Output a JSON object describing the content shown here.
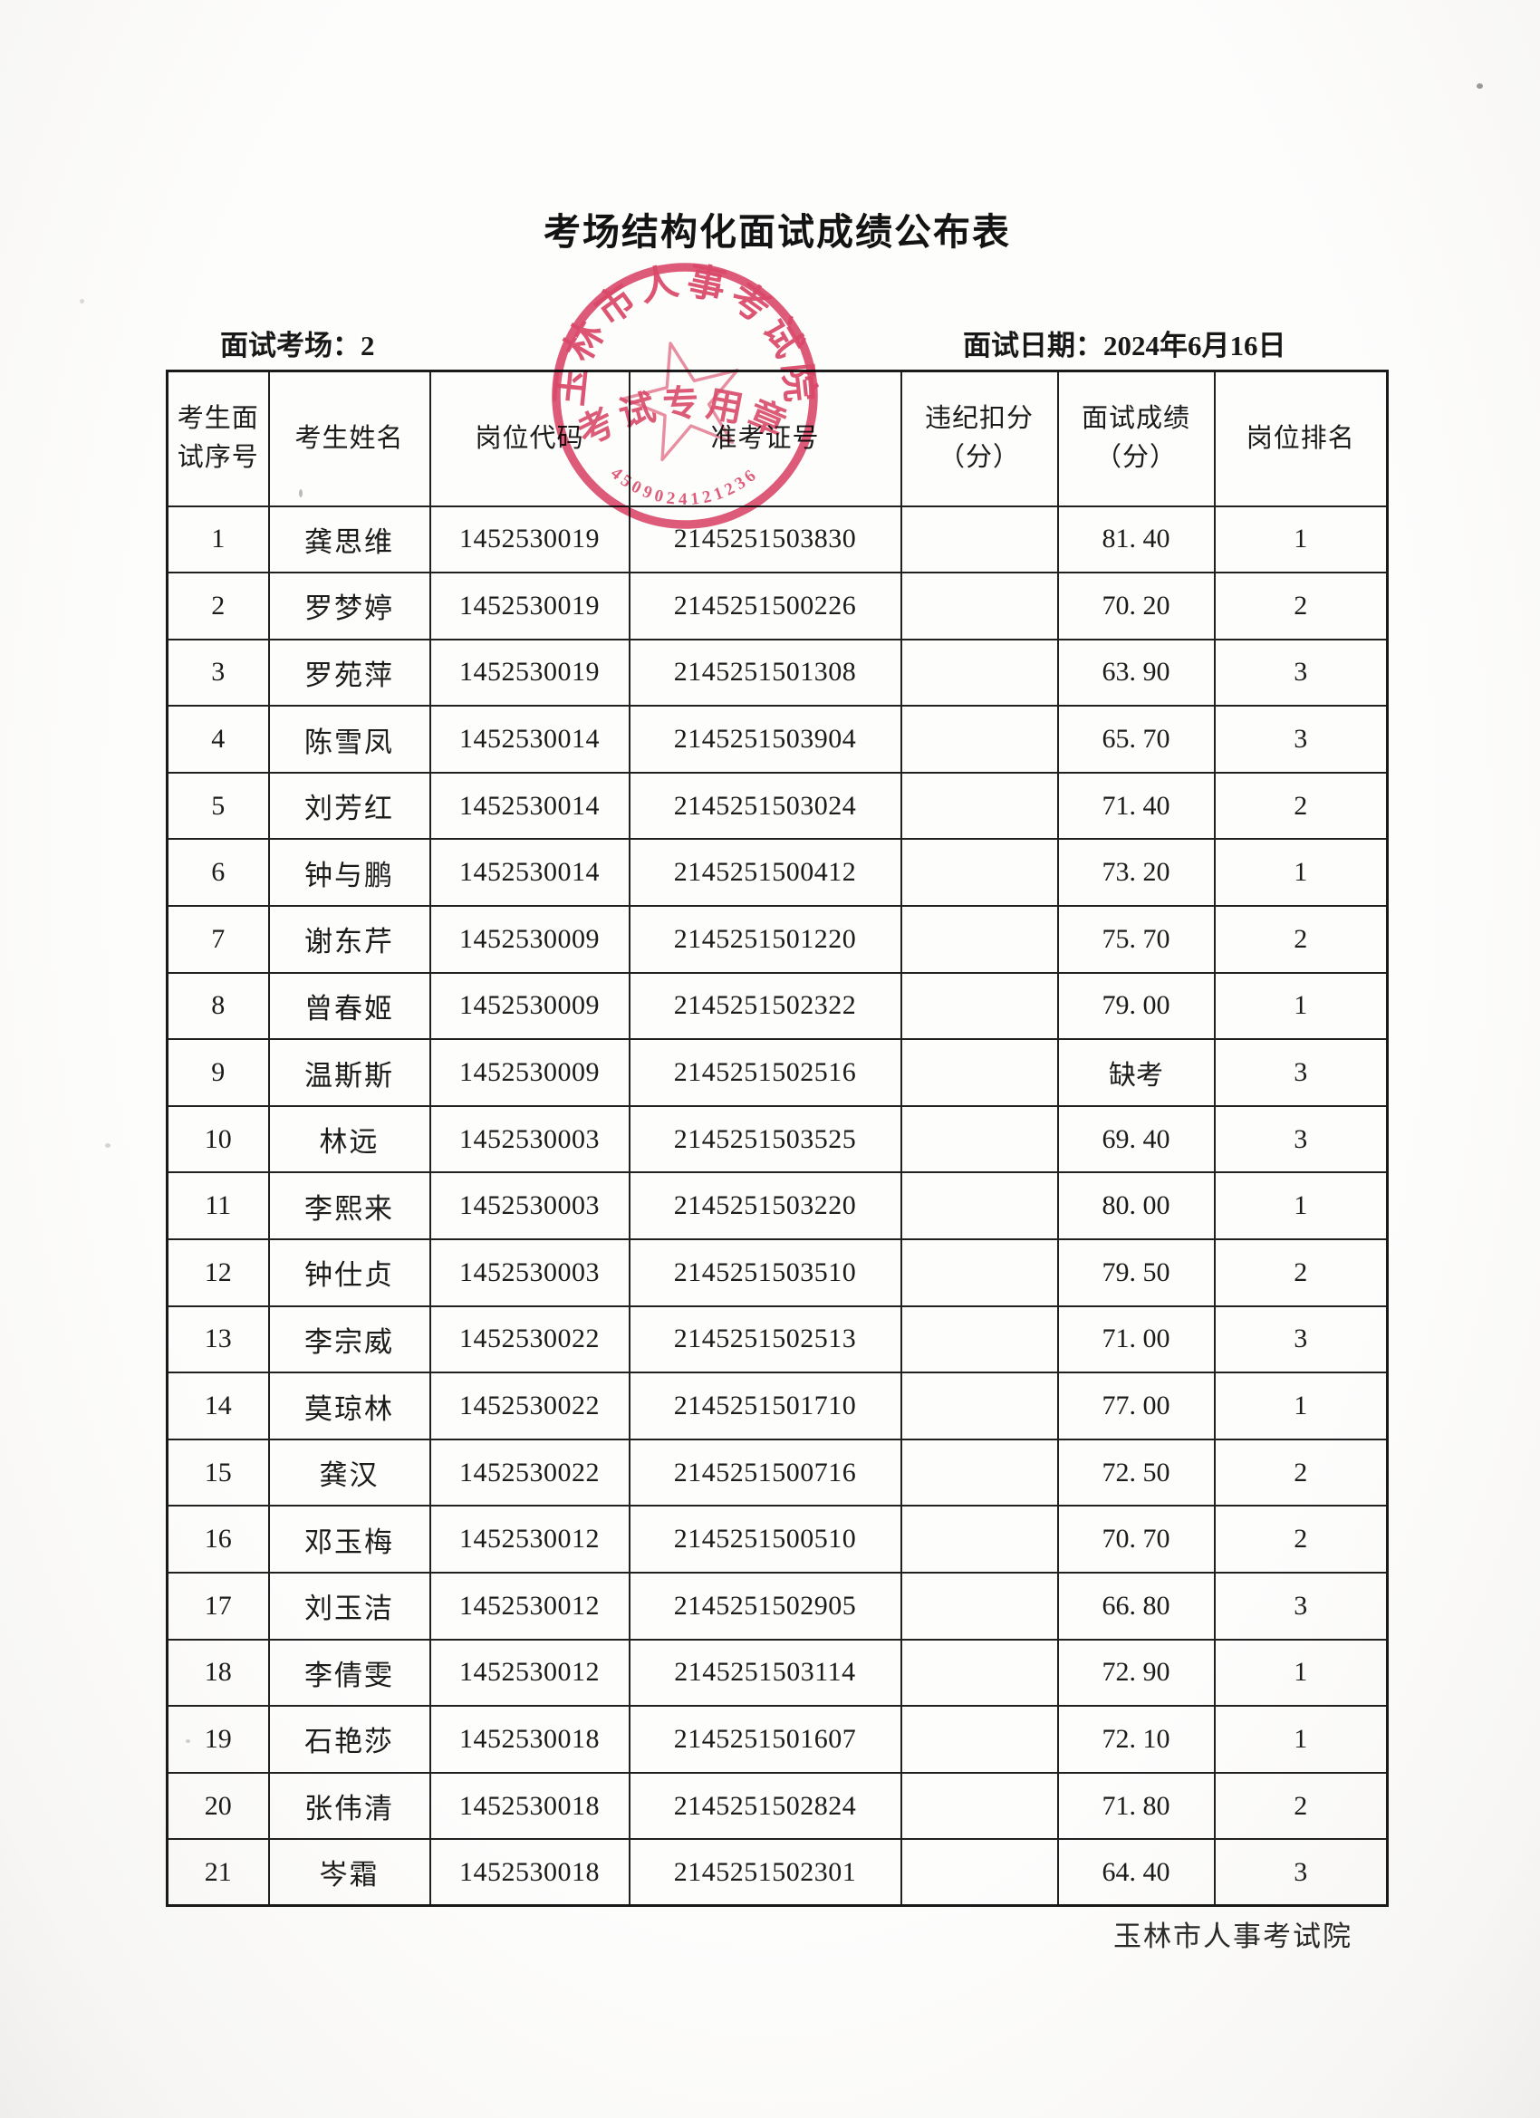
{
  "page": {
    "title": "考场结构化面试成绩公布表",
    "meta": {
      "venue_label": "面试考场：",
      "venue_value": "2",
      "date_label": "面试日期：",
      "date_value": "2024年6月16日"
    },
    "footer": "玉林市人事考试院"
  },
  "stamp": {
    "ring_text": "玉林市人事考试院",
    "band_text": "考试专用章",
    "serial": "4509024121236",
    "color": "#d83b5e"
  },
  "table": {
    "headers": [
      "考生面\n试序号",
      "考生姓名",
      "岗位代码",
      "准考证号",
      "违纪扣分\n（分）",
      "面试成绩\n（分）",
      "岗位排名"
    ],
    "rows": [
      [
        "1",
        "龚思维",
        "1452530019",
        "2145251503830",
        "",
        "81. 40",
        "1"
      ],
      [
        "2",
        "罗梦婷",
        "1452530019",
        "2145251500226",
        "",
        "70. 20",
        "2"
      ],
      [
        "3",
        "罗苑萍",
        "1452530019",
        "2145251501308",
        "",
        "63. 90",
        "3"
      ],
      [
        "4",
        "陈雪凤",
        "1452530014",
        "2145251503904",
        "",
        "65. 70",
        "3"
      ],
      [
        "5",
        "刘芳红",
        "1452530014",
        "2145251503024",
        "",
        "71. 40",
        "2"
      ],
      [
        "6",
        "钟与鹏",
        "1452530014",
        "2145251500412",
        "",
        "73. 20",
        "1"
      ],
      [
        "7",
        "谢东芹",
        "1452530009",
        "2145251501220",
        "",
        "75. 70",
        "2"
      ],
      [
        "8",
        "曾春姬",
        "1452530009",
        "2145251502322",
        "",
        "79. 00",
        "1"
      ],
      [
        "9",
        "温斯斯",
        "1452530009",
        "2145251502516",
        "",
        "缺考",
        "3"
      ],
      [
        "10",
        "林远",
        "1452530003",
        "2145251503525",
        "",
        "69. 40",
        "3"
      ],
      [
        "11",
        "李熙来",
        "1452530003",
        "2145251503220",
        "",
        "80. 00",
        "1"
      ],
      [
        "12",
        "钟仕贞",
        "1452530003",
        "2145251503510",
        "",
        "79. 50",
        "2"
      ],
      [
        "13",
        "李宗威",
        "1452530022",
        "2145251502513",
        "",
        "71. 00",
        "3"
      ],
      [
        "14",
        "莫琼林",
        "1452530022",
        "2145251501710",
        "",
        "77. 00",
        "1"
      ],
      [
        "15",
        "龚汉",
        "1452530022",
        "2145251500716",
        "",
        "72. 50",
        "2"
      ],
      [
        "16",
        "邓玉梅",
        "1452530012",
        "2145251500510",
        "",
        "70. 70",
        "2"
      ],
      [
        "17",
        "刘玉洁",
        "1452530012",
        "2145251502905",
        "",
        "66. 80",
        "3"
      ],
      [
        "18",
        "李倩雯",
        "1452530012",
        "2145251503114",
        "",
        "72. 90",
        "1"
      ],
      [
        "19",
        "石艳莎",
        "1452530018",
        "2145251501607",
        "",
        "72. 10",
        "1"
      ],
      [
        "20",
        "张伟清",
        "1452530018",
        "2145251502824",
        "",
        "71. 80",
        "2"
      ],
      [
        "21",
        "岑霜",
        "1452530018",
        "2145251502301",
        "",
        "64. 40",
        "3"
      ]
    ]
  }
}
